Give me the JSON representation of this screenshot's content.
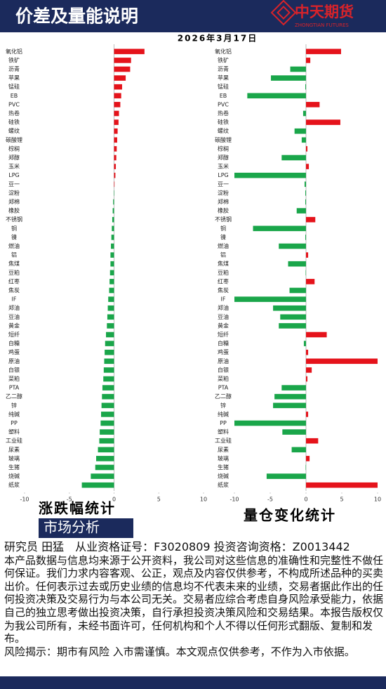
{
  "header": {
    "title": "价差及量能说明",
    "date": "2026年3月17日",
    "logo_cn": "中天期货",
    "logo_en": "ZHONGTIAN FUTURES"
  },
  "chart_data": [
    {
      "type": "bar",
      "orientation": "horizontal",
      "title": "涨跌幅统计",
      "categories": [
        "氧化铝",
        "铁矿",
        "沥青",
        "苹果",
        "锰硅",
        "EB",
        "PVC",
        "热卷",
        "硅铁",
        "螺纹",
        "碳酸锂",
        "棕榈",
        "郑醇",
        "玉米",
        "LPG",
        "豆一",
        "淀粉",
        "郑棉",
        "橡胶",
        "不锈钢",
        "铜",
        "镍",
        "燃油",
        "铝",
        "焦煤",
        "豆粕",
        "红枣",
        "焦炭",
        "IF",
        "郑油",
        "豆油",
        "黄金",
        "短纤",
        "白糖",
        "鸡蛋",
        "原油",
        "白银",
        "菜粕",
        "PTA",
        "乙二醇",
        "锌",
        "纯碱",
        "PP",
        "塑料",
        "工业硅",
        "尿素",
        "玻璃",
        "生猪",
        "烧碱",
        "纸浆"
      ],
      "values": [
        3.4,
        1.9,
        1.8,
        1.3,
        0.9,
        0.8,
        0.7,
        0.55,
        0.5,
        0.4,
        0.35,
        0.3,
        0.25,
        0.2,
        0.15,
        0.05,
        -0.02,
        -0.1,
        -0.15,
        -0.2,
        -0.25,
        -0.3,
        -0.35,
        -0.4,
        -0.4,
        -0.45,
        -0.5,
        -0.55,
        -0.65,
        -0.7,
        -0.75,
        -0.8,
        -0.9,
        -1.0,
        -1.05,
        -1.1,
        -1.15,
        -1.2,
        -1.3,
        -1.35,
        -1.4,
        -1.45,
        -1.5,
        -1.6,
        -1.65,
        -1.8,
        -2.0,
        -2.1,
        -2.6,
        -3.6
      ],
      "xlim": [
        -10,
        10
      ],
      "xticks": [
        -10,
        -5,
        0,
        5,
        10
      ],
      "colors": {
        "positive": "#e5131b",
        "negative": "#1aa64a"
      }
    },
    {
      "type": "bar",
      "orientation": "horizontal",
      "title": "量仓变化统计",
      "categories": [
        "氧化铝",
        "铁矿",
        "沥青",
        "苹果",
        "锰硅",
        "EB",
        "PVC",
        "热卷",
        "硅铁",
        "螺纹",
        "碳酸锂",
        "棕榈",
        "郑醇",
        "玉米",
        "LPG",
        "豆一",
        "淀粉",
        "郑棉",
        "橡胶",
        "不锈钢",
        "铜",
        "镍",
        "燃油",
        "铝",
        "焦煤",
        "豆粕",
        "红枣",
        "焦炭",
        "IF",
        "郑油",
        "豆油",
        "黄金",
        "短纤",
        "白糖",
        "鸡蛋",
        "原油",
        "白银",
        "菜粕",
        "PTA",
        "乙二醇",
        "锌",
        "纯碱",
        "PP",
        "塑料",
        "工业硅",
        "尿素",
        "玻璃",
        "生猪",
        "烧碱",
        "纸浆"
      ],
      "values": [
        4.9,
        0.6,
        -2.2,
        -4.9,
        -0.1,
        -8.2,
        1.9,
        -0.4,
        4.8,
        -1.6,
        -0.6,
        0.2,
        -3.4,
        0.4,
        -10,
        -0.2,
        -0.1,
        -0.1,
        -1.3,
        1.3,
        -7.4,
        -0.1,
        -3.8,
        0.3,
        -2.5,
        -0.05,
        1.2,
        -2.3,
        -10,
        -4.6,
        -3.6,
        -3.8,
        2.9,
        -0.3,
        0.3,
        10,
        0.8,
        0.2,
        -3.4,
        -4.4,
        -4.6,
        0.3,
        -10,
        -3.3,
        1.7,
        -2.0,
        0.5,
        -0.05,
        -5.5,
        10
      ],
      "xlim": [
        -10,
        10
      ],
      "xticks": [
        -10,
        -5,
        0,
        5,
        10
      ],
      "colors": {
        "positive": "#e5131b",
        "negative": "#1aa64a"
      }
    }
  ],
  "section": "市场分析",
  "body": {
    "author": "研究员 田猛　从业资格证号：F3020809 投资咨询资格：Z0013442",
    "disclaimer": "本产品数据与信息均来源于公开资料，我公司对这些信息的准确性和完整性不做任何保证。我们力求内容客观、公正，观点及内容仅供参考，不构成所述品种的买卖出价。任何表示过去或历史业绩的信息均不代表未来的业绩，交易者据此作出的任何投资决策及交易行为与本公司无关。交易者应综合考虑自身风险承受能力，依据自己的独立思考做出投资决策，自行承担投资决策风险和交易结果。本报告版权仅为我公司所有，未经书面许可，任何机构和个人不得以任何形式翻版、复制和发布。",
    "risk": "风险揭示：期市有风险 入市需谨慎。本文观点仅供参考，不作为入市依据。"
  }
}
